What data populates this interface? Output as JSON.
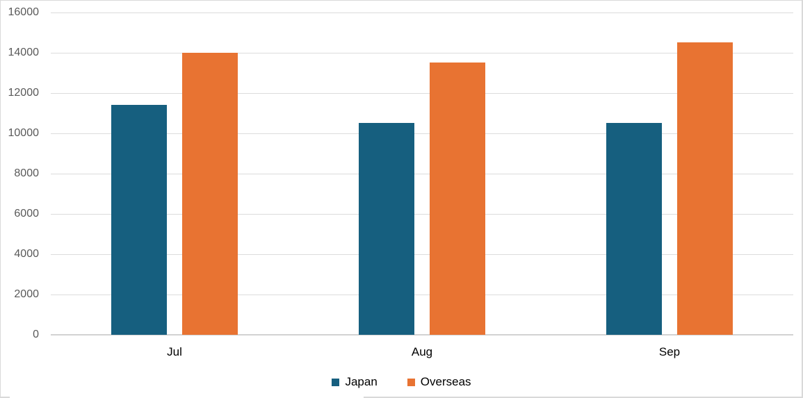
{
  "chart_data": {
    "type": "bar",
    "title": "",
    "xlabel": "",
    "ylabel": "",
    "categories": [
      "Jul",
      "Aug",
      "Sep"
    ],
    "series": [
      {
        "name": "Japan",
        "color": "#165F7F",
        "values": [
          11400,
          10500,
          10500
        ]
      },
      {
        "name": "Overseas",
        "color": "#E87332",
        "values": [
          14000,
          13500,
          14500
        ]
      }
    ],
    "ylim": [
      0,
      16000
    ],
    "ytick_interval": 2000,
    "ytick_labels": [
      "0",
      "2000",
      "4000",
      "6000",
      "8000",
      "10000",
      "12000",
      "14000",
      "16000"
    ],
    "grid": true,
    "legend_position": "bottom"
  },
  "colors": {
    "gridline": "#dcdcdc",
    "axis_line": "#d2d2d2",
    "frame_border": "#d9d9d9",
    "ytick_text": "#595959",
    "xlabel_text": "#000000"
  }
}
